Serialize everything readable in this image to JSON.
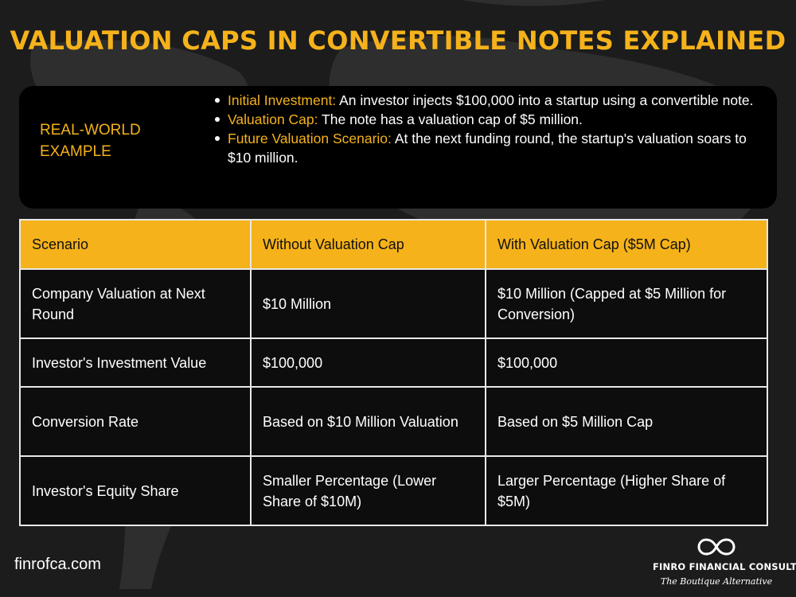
{
  "title": "VALUATION CAPS IN CONVERTIBLE NOTES EXPLAINED",
  "example": {
    "label": "REAL-WORLD EXAMPLE",
    "items": [
      {
        "key": "Initial Investment:",
        "text": " An investor injects $100,000 into a startup using a convertible note."
      },
      {
        "key": "Valuation Cap:",
        "text": " The note has a valuation cap of $5 million."
      },
      {
        "key": "Future Valuation Scenario:",
        "text": " At the next funding round, the startup's valuation soars to $10 million."
      }
    ]
  },
  "table": {
    "headers": [
      "Scenario",
      "Without Valuation Cap",
      "With Valuation Cap ($5M Cap)"
    ],
    "rows": [
      [
        "Company Valuation at Next Round",
        "$10 Million",
        "$10 Million (Capped at $5 Million for Conversion)"
      ],
      [
        "Investor's Investment Value",
        "$100,000",
        "$100,000"
      ],
      [
        "Conversion Rate",
        "Based on $10 Million Valuation",
        "Based on $5 Million Cap"
      ],
      [
        "Investor's Equity Share",
        "Smaller Percentage (Lower Share of $10M)",
        "Larger Percentage (Higher Share of $5M)"
      ]
    ]
  },
  "footer": {
    "url": "finrofca.com",
    "brand_name": "FINRO FINANCIAL CONSULTING",
    "brand_tagline": "The Boutique Alternative",
    "logo_icon": "infinity-icon"
  },
  "colors": {
    "accent": "#f5b21a",
    "background": "#1c1c1c",
    "panel": "#000000"
  }
}
